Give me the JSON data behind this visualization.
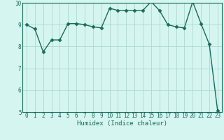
{
  "x_data": [
    0,
    1,
    2,
    3,
    4,
    5,
    6,
    7,
    8,
    9,
    10,
    11,
    12,
    13,
    14,
    15,
    16,
    17,
    18,
    19,
    20,
    21,
    22,
    23
  ],
  "y_data": [
    9.0,
    8.8,
    7.75,
    8.3,
    8.3,
    9.05,
    9.05,
    9.0,
    8.9,
    8.85,
    9.75,
    9.65,
    9.65,
    9.65,
    9.65,
    10.05,
    9.65,
    9.0,
    8.9,
    8.85,
    10.05,
    9.05,
    8.1,
    5.05
  ],
  "line_color": "#1a6b5a",
  "marker_color": "#1a6b5a",
  "bg_color": "#d4f5f0",
  "grid_color": "#b0d8d0",
  "xlabel": "Humidex (Indice chaleur)",
  "ylim": [
    5,
    10
  ],
  "xlim_min": -0.5,
  "xlim_max": 23.5,
  "yticks": [
    5,
    6,
    7,
    8,
    9,
    10
  ],
  "xticks": [
    0,
    1,
    2,
    3,
    4,
    5,
    6,
    7,
    8,
    9,
    10,
    11,
    12,
    13,
    14,
    15,
    16,
    17,
    18,
    19,
    20,
    21,
    22,
    23
  ],
  "font_color": "#1a6b5a",
  "tick_fontsize": 5.5,
  "xlabel_fontsize": 6.5,
  "linewidth": 1.0,
  "markersize": 2.5
}
